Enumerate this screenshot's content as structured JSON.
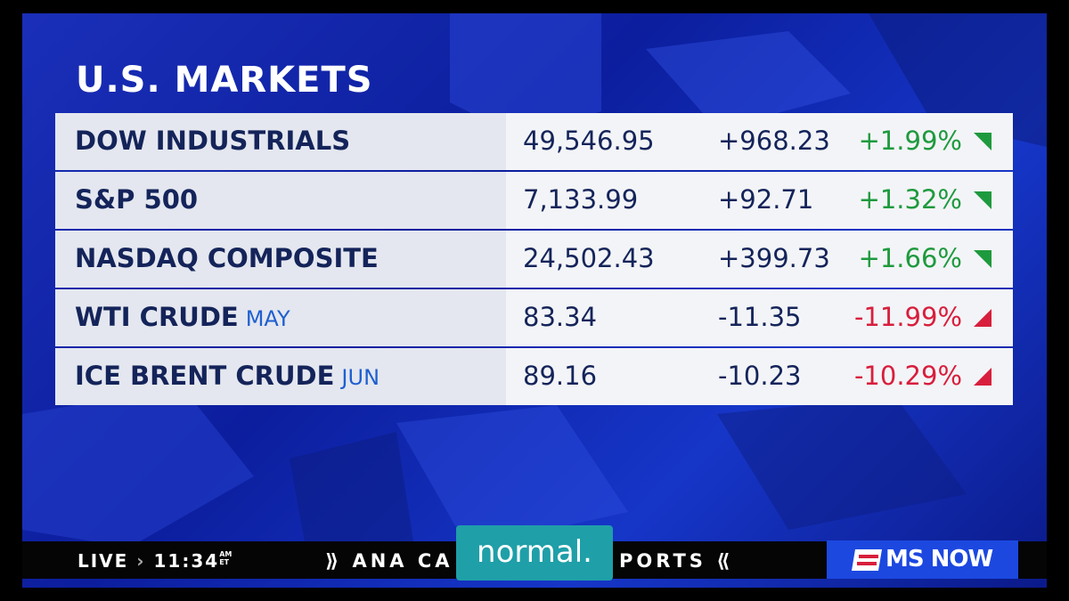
{
  "header": {
    "title": "U.S. MARKETS"
  },
  "table": {
    "rows": [
      {
        "name": "DOW INDUSTRIALS",
        "contract": null,
        "last": "49,546.95",
        "change": "+968.23",
        "percent": "+1.99%"
      },
      {
        "name": "S&P 500",
        "contract": null,
        "last": "7,133.99",
        "change": "+92.71",
        "percent": "+1.32%"
      },
      {
        "name": "NASDAQ COMPOSITE",
        "contract": null,
        "last": "24,502.43",
        "change": "+399.73",
        "percent": "+1.66%"
      },
      {
        "name": "WTI CRUDE",
        "contract": "MAY",
        "last": "83.34",
        "change": "-11.35",
        "percent": "-11.99%"
      },
      {
        "name": "ICE BRENT CRUDE",
        "contract": "JUN",
        "last": "89.16",
        "change": "-10.23",
        "percent": "-10.29%"
      }
    ]
  },
  "ticker": {
    "live": "LIVE",
    "time": "11:34",
    "am": "AM",
    "tz": "ET",
    "headline_left": "ANA CA",
    "headline_right": "PORTS"
  },
  "logo": "MS NOW",
  "caption": "normal."
}
